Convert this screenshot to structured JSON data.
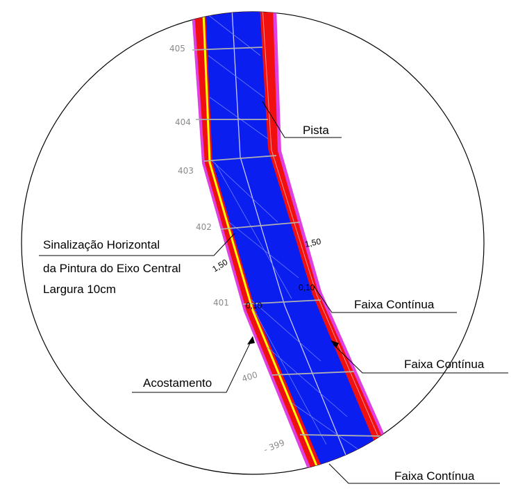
{
  "labels": {
    "pista": "Pista",
    "sinalizacao_line1": "Sinalização Horizontal",
    "sinalizacao_line2": "da Pintura do Eixo Central",
    "sinalizacao_line3": "Largura 10cm",
    "faixa_1": "Faixa Contínua",
    "faixa_2": "Faixa Contínua",
    "faixa_3": "Faixa Contínua",
    "acostamento": "Acostamento"
  },
  "stations": {
    "s405": "405",
    "s404": "404",
    "s403": "403",
    "s402": "402",
    "s401": "401",
    "s400": "400",
    "s399": "- 399"
  },
  "dimensions": {
    "d150_right": "1,50",
    "d150_left": "1,50",
    "d010_right": "0,10",
    "d010_left": "0,10"
  },
  "colors": {
    "lane": "#0a1ef0",
    "shoulder": "#f01010",
    "edge": "#e040e0",
    "stripe": "#ffff00",
    "circle": "#000000"
  }
}
